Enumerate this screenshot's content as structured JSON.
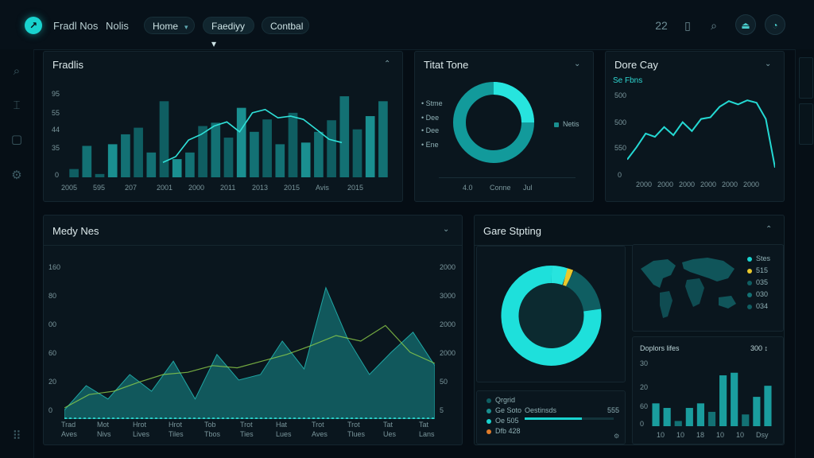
{
  "header": {
    "brand": "Fradl Nos",
    "nav_link": "Nolis",
    "pills": [
      {
        "label": "Home",
        "chevron": "▾"
      },
      {
        "label": "Faediyy ▾"
      },
      {
        "label": "Contbal"
      }
    ],
    "right_label": "22"
  },
  "panels": {
    "top_left": {
      "title": "Fradlis",
      "y_ticks": [
        "95",
        "55",
        "44",
        "35",
        "0"
      ],
      "x_ticks": [
        "2005",
        "595",
        "207",
        "2001",
        "2000",
        "2011",
        "2013",
        "2015",
        "Avis",
        "2015"
      ]
    },
    "top_mid": {
      "title": "Titat Tone",
      "legend": [
        "Stme",
        "Dee",
        "Dee",
        "Ene"
      ],
      "side_label": "Netis",
      "x_ticks": [
        "4.0",
        "Conne",
        "Jul"
      ]
    },
    "top_right": {
      "title": "Dore Cay",
      "subtitle": "Se Fbns",
      "y_ticks": [
        "500",
        "500",
        "550",
        "0"
      ],
      "x_ticks": [
        "2000",
        "2000",
        "2000",
        "2000",
        "2000",
        "2000"
      ]
    },
    "mid_left": {
      "title": "Medy Nes",
      "y_left": [
        "160",
        "80",
        "00",
        "60",
        "20",
        "0"
      ],
      "y_right": [
        "2000",
        "3000",
        "2000",
        "2000",
        "50",
        "5"
      ],
      "x_ticks": [
        [
          "Trad",
          "Aves"
        ],
        [
          "Mot",
          "Nivs"
        ],
        [
          "Hrot",
          "Lives"
        ],
        [
          "Hrot",
          "Tiles"
        ],
        [
          "Tob",
          "Tbos"
        ],
        [
          "Trot",
          "Ties"
        ],
        [
          "Hat",
          "Lues"
        ],
        [
          "Trot",
          "Aves"
        ],
        [
          "Trot",
          "Tlues"
        ],
        [
          "Tat",
          "Ues"
        ],
        [
          "Tat",
          "Lans"
        ]
      ]
    },
    "mid_right": {
      "title": "Gare Stpting",
      "map_legend": [
        "Stes",
        "515",
        "035",
        "030",
        "034"
      ],
      "bottom_legend": [
        "Qrgrid",
        "Ge Soto",
        "Oe 505",
        "Dfb 428"
      ],
      "bar_label": "Oestinsds",
      "bar_value": "555",
      "bar_panel_title": "Doplors lifes",
      "bar_panel_value": "300 ↕",
      "bar_panel_y": [
        "30",
        "20",
        "60",
        "0"
      ],
      "bar_panel_x": [
        "10",
        "10",
        "18",
        "10",
        "10",
        "Dsy"
      ]
    }
  },
  "colors": {
    "accent": "#19d3cf",
    "teal_dark": "#0f5e62",
    "teal_mid": "#1a8f90",
    "bg": "#050d14",
    "panel": "#0a161e",
    "yellow": "#e9c82c",
    "orange": "#e07c2a"
  },
  "chart_data": [
    {
      "type": "bar",
      "name": "top-left-bars",
      "values": [
        10,
        38,
        4,
        40,
        52,
        60,
        30,
        92,
        22,
        30,
        62,
        66,
        48,
        84,
        55,
        70,
        40,
        78,
        42,
        55,
        69,
        98,
        58,
        74,
        92
      ],
      "ylim": [
        0,
        100
      ]
    },
    {
      "type": "line",
      "name": "top-left-line",
      "values": [
        18,
        25,
        45,
        52,
        62,
        67,
        55,
        78,
        82,
        72,
        74,
        70,
        58,
        46,
        42
      ],
      "ylim": [
        0,
        100
      ]
    },
    {
      "type": "pie",
      "name": "top-mid-donut",
      "values": [
        100
      ]
    },
    {
      "type": "line",
      "name": "top-right-line",
      "values": [
        20,
        35,
        52,
        48,
        60,
        50,
        66,
        55,
        70,
        72,
        85,
        92,
        88,
        93,
        90,
        70,
        10
      ],
      "ylim": [
        0,
        100
      ]
    },
    {
      "type": "area",
      "name": "mid-left-area",
      "values": [
        8,
        30,
        18,
        40,
        25,
        52,
        18,
        58,
        35,
        40,
        70,
        45,
        118,
        72,
        40,
        60,
        78,
        48
      ],
      "ylim": [
        0,
        140
      ]
    },
    {
      "type": "line",
      "name": "mid-left-line",
      "values": [
        10,
        22,
        25,
        33,
        40,
        42,
        48,
        46,
        52,
        58,
        66,
        75,
        70,
        84,
        60,
        50
      ],
      "ylim": [
        0,
        140
      ]
    },
    {
      "type": "pie",
      "name": "mid-right-donut",
      "values": [
        78,
        3,
        19
      ]
    },
    {
      "type": "bar",
      "name": "mid-right-bars",
      "values": [
        35,
        28,
        8,
        28,
        35,
        22,
        78,
        82,
        18,
        45,
        62
      ],
      "ylim": [
        0,
        100
      ]
    }
  ]
}
